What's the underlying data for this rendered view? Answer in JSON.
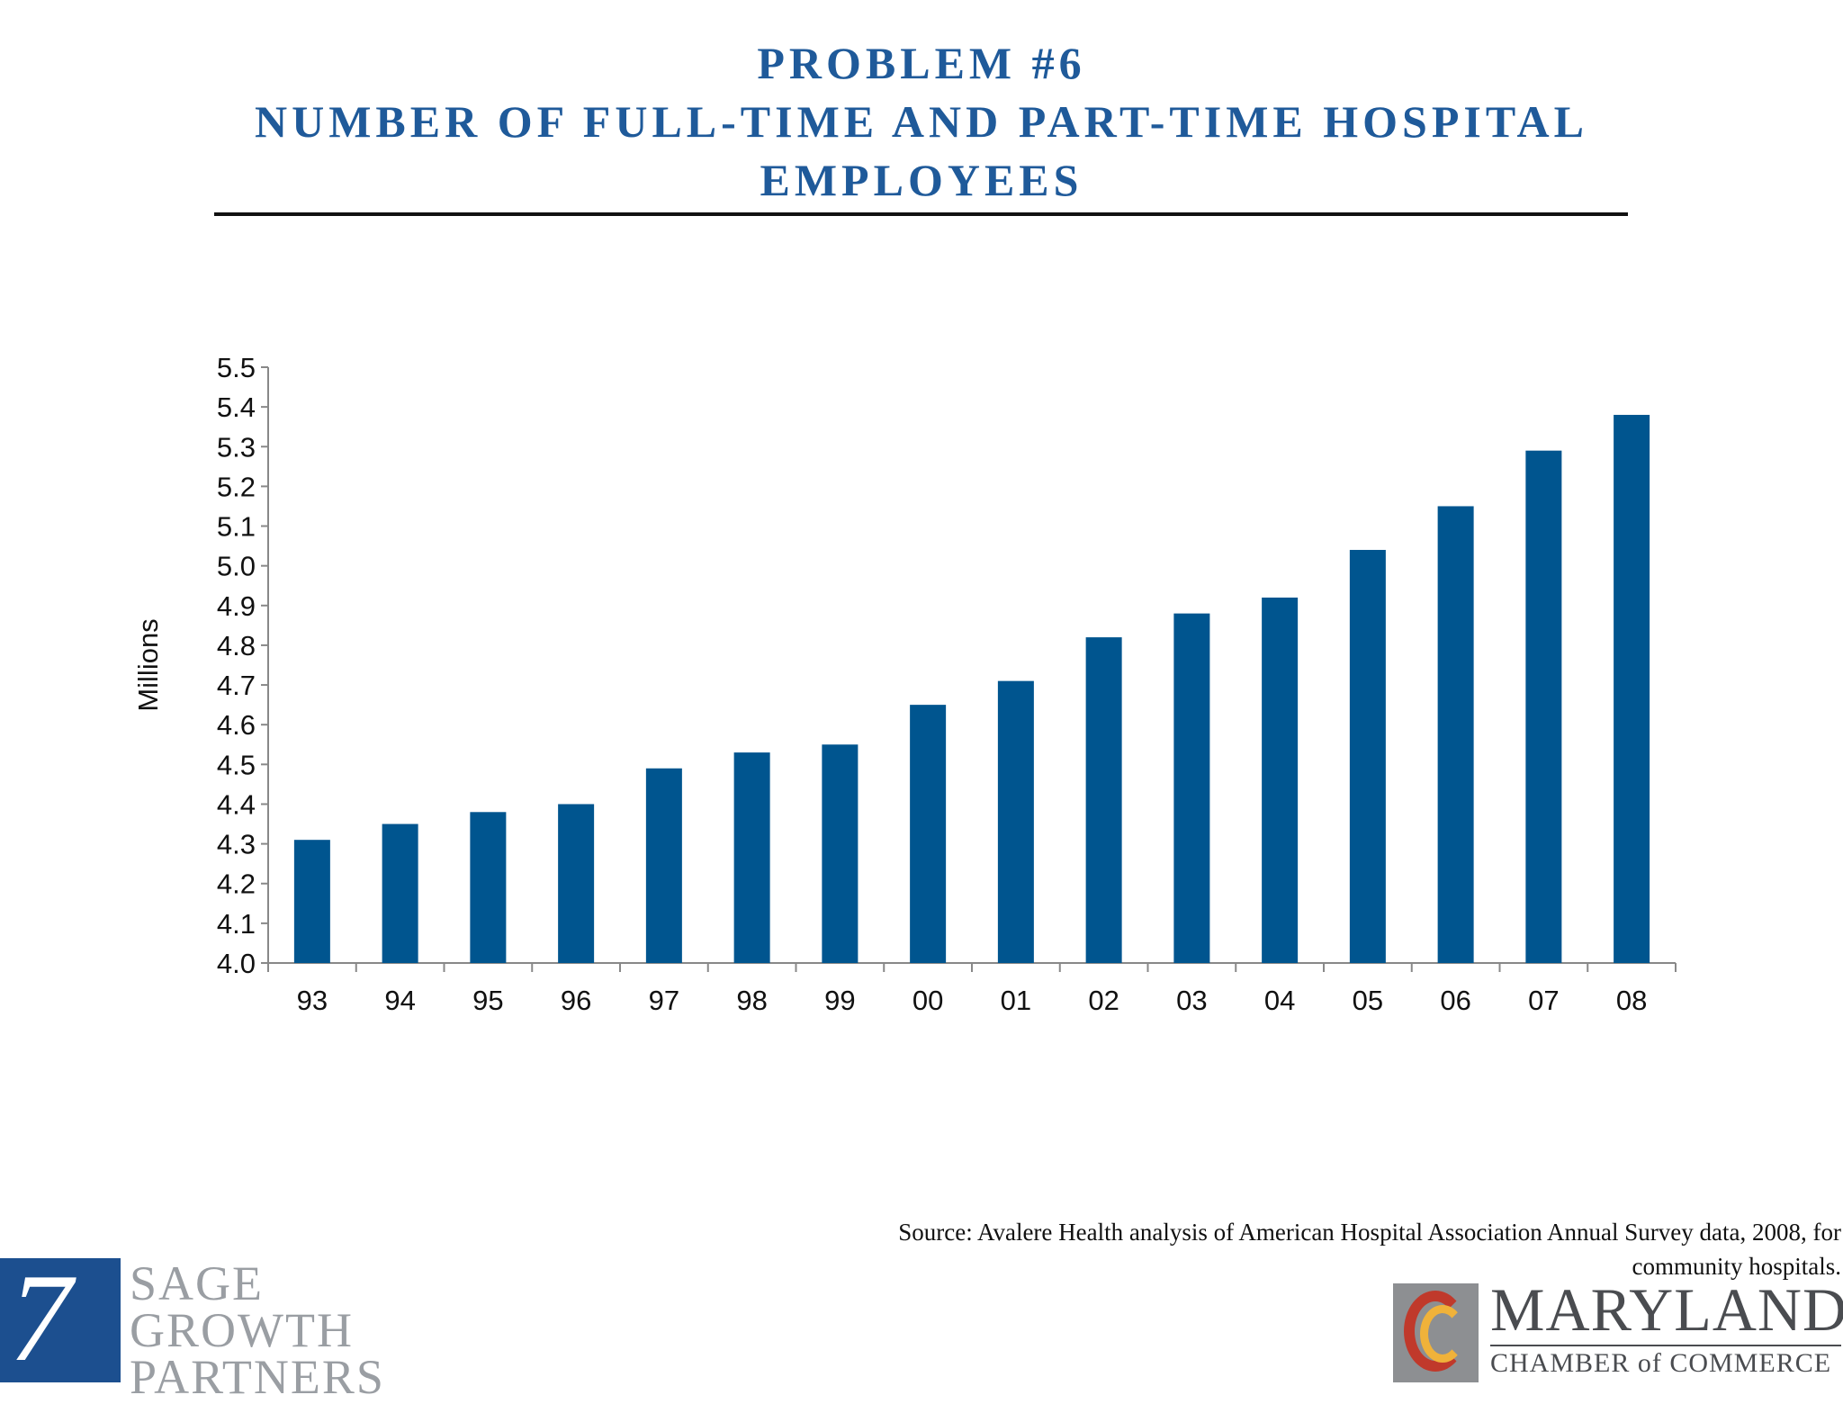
{
  "slide": {
    "title_lines": [
      "PROBLEM #6",
      "NUMBER OF FULL-TIME AND PART-TIME HOSPITAL",
      "EMPLOYEES"
    ],
    "source_lines": [
      "Source: Avalere Health analysis of American Hospital Association Annual Survey data, 2008, for",
      "community hospitals."
    ]
  },
  "logos": {
    "sage": {
      "mark": "7",
      "line1": "SAGE GROWTH",
      "line2": "PARTNERS",
      "color": "#1c4f8f"
    },
    "maryland": {
      "line1": "MARYLAND",
      "line2": "CHAMBER of COMMERCE"
    }
  },
  "chart_data": {
    "type": "bar",
    "categories": [
      "93",
      "94",
      "95",
      "96",
      "97",
      "98",
      "99",
      "00",
      "01",
      "02",
      "03",
      "04",
      "05",
      "06",
      "07",
      "08"
    ],
    "values": [
      4.31,
      4.35,
      4.38,
      4.4,
      4.49,
      4.53,
      4.55,
      4.65,
      4.71,
      4.82,
      4.88,
      4.92,
      5.04,
      5.15,
      5.29,
      5.38
    ],
    "ylabel": "Millions",
    "xlabel": "",
    "ylim": [
      4.0,
      5.5
    ],
    "yticks": [
      "4.0",
      "4.1",
      "4.2",
      "4.3",
      "4.4",
      "4.5",
      "4.6",
      "4.7",
      "4.8",
      "4.9",
      "5.0",
      "5.1",
      "5.2",
      "5.3",
      "5.4",
      "5.5"
    ],
    "bar_color": "#00558f",
    "grid": false,
    "legend": "none"
  }
}
